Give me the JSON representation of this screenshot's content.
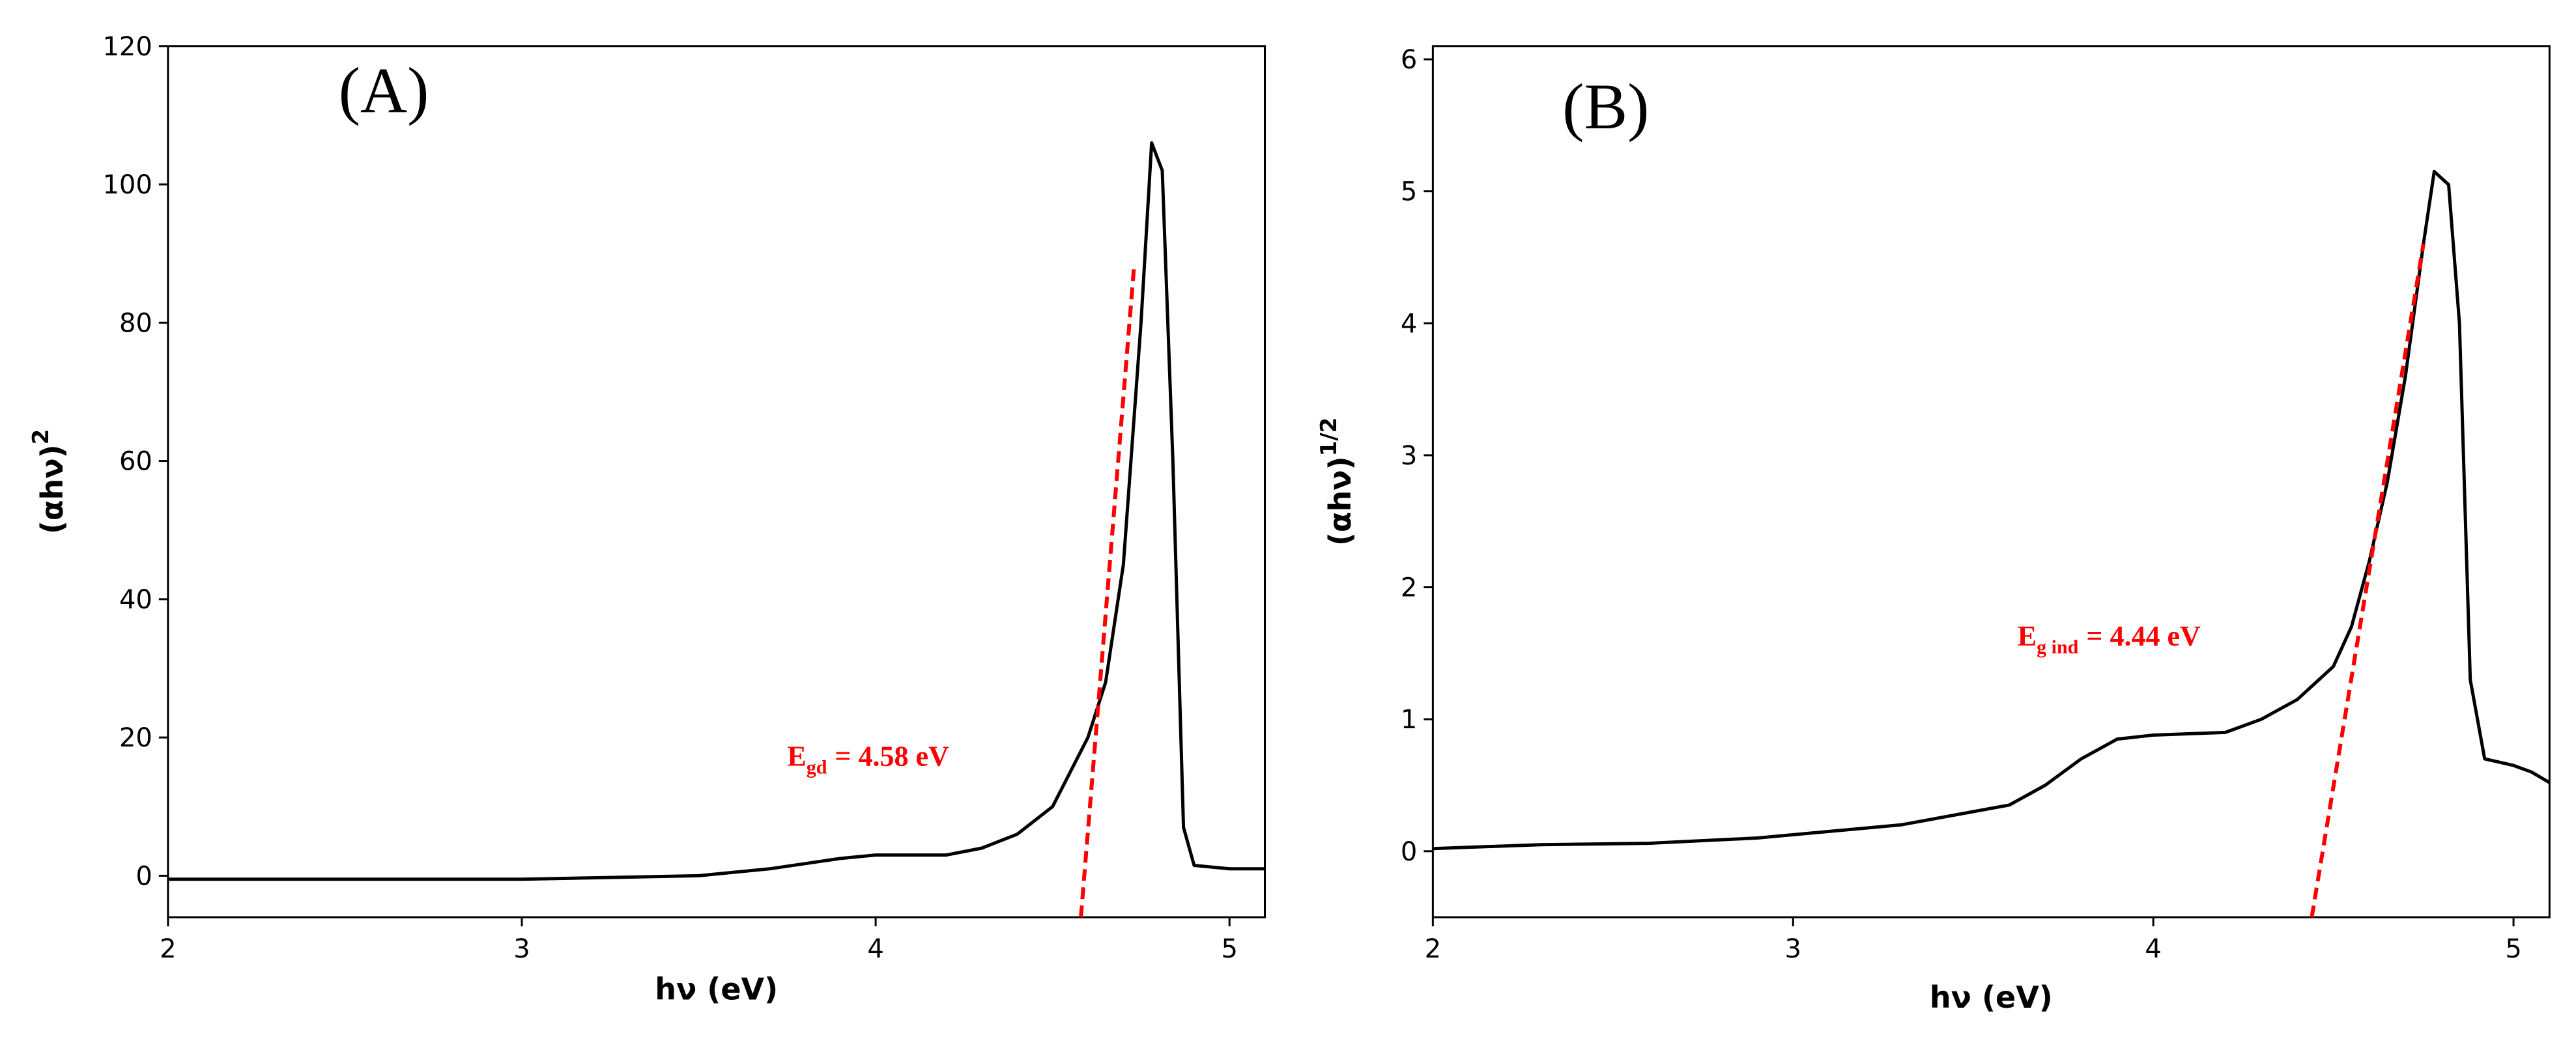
{
  "chart_data": [
    {
      "type": "line",
      "panel_label": "(A)",
      "xlabel": "hν (eV)",
      "ylabel": "(αhν)",
      "ylabel_sup": "2",
      "annotation": {
        "main": "E",
        "sub": "gd",
        "rest": "= 4.58 eV"
      },
      "xlim": [
        2,
        5.1
      ],
      "ylim": [
        -6,
        120
      ],
      "xticks": [
        2,
        3,
        4,
        5
      ],
      "yticks": [
        0,
        20,
        40,
        60,
        80,
        100,
        120
      ],
      "series": [
        {
          "color": "#000000",
          "x": [
            2,
            3.0,
            3.2,
            3.5,
            3.7,
            3.9,
            4.0,
            4.2,
            4.3,
            4.4,
            4.5,
            4.6,
            4.65,
            4.7,
            4.75,
            4.78,
            4.81,
            4.84,
            4.87,
            4.9,
            5.0,
            5.1
          ],
          "values": [
            -0.5,
            -0.5,
            -0.3,
            0,
            1,
            2.5,
            3,
            3,
            4,
            6,
            10,
            20,
            28,
            45,
            80,
            106,
            102,
            60,
            7,
            1.5,
            1,
            1
          ]
        },
        {
          "color": "#ff0000",
          "dashed": true,
          "x": [
            4.58,
            4.73
          ],
          "values": [
            -6,
            88
          ]
        }
      ]
    },
    {
      "type": "line",
      "panel_label": "(B)",
      "xlabel": "hν (eV)",
      "ylabel": "(αhν)",
      "ylabel_sup": "1/2",
      "annotation": {
        "main": "E",
        "sub": "g ind",
        "rest": "= 4.44 eV"
      },
      "xlim": [
        2,
        5.1
      ],
      "ylim": [
        -0.5,
        6.1
      ],
      "xticks": [
        2,
        3,
        4,
        5
      ],
      "yticks": [
        0,
        1,
        2,
        3,
        4,
        5,
        6
      ],
      "series": [
        {
          "color": "#000000",
          "x": [
            2,
            2.3,
            2.6,
            2.9,
            3.1,
            3.3,
            3.5,
            3.6,
            3.7,
            3.8,
            3.9,
            4.0,
            4.2,
            4.3,
            4.4,
            4.5,
            4.55,
            4.6,
            4.65,
            4.7,
            4.75,
            4.78,
            4.82,
            4.85,
            4.88,
            4.92,
            5.0,
            5.05,
            5.1
          ],
          "values": [
            0.02,
            0.05,
            0.06,
            0.1,
            0.15,
            0.2,
            0.3,
            0.35,
            0.5,
            0.7,
            0.85,
            0.88,
            0.9,
            1.0,
            1.15,
            1.4,
            1.7,
            2.2,
            2.8,
            3.6,
            4.6,
            5.15,
            5.05,
            4.0,
            1.3,
            0.7,
            0.65,
            0.6,
            0.52
          ]
        },
        {
          "color": "#ff0000",
          "dashed": true,
          "x": [
            4.44,
            4.75
          ],
          "values": [
            -0.5,
            4.6
          ]
        }
      ]
    }
  ]
}
